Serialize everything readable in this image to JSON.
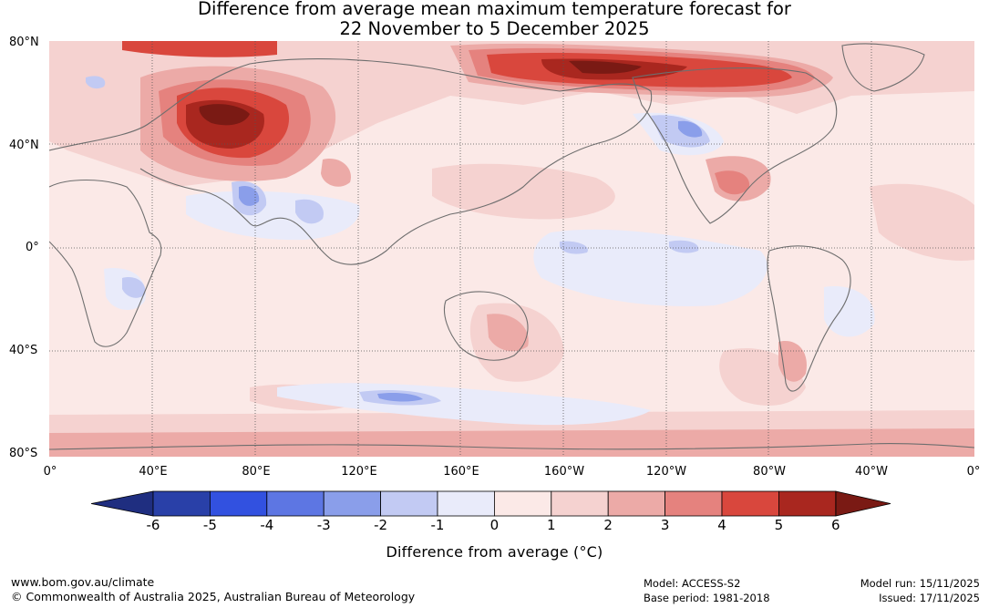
{
  "title": {
    "line1": "Difference from average mean maximum temperature forecast for",
    "line2": "22 November to 5 December 2025"
  },
  "map": {
    "lat_labels": [
      "80°N",
      "40°N",
      "0°",
      "40°S",
      "80°S"
    ],
    "lon_labels": [
      "0°",
      "40°E",
      "80°E",
      "120°E",
      "160°E",
      "160°W",
      "120°W",
      "80°W",
      "40°W",
      "0°"
    ]
  },
  "colorbar": {
    "ticks": [
      "-6",
      "-5",
      "-4",
      "-3",
      "-2",
      "-1",
      "0",
      "1",
      "2",
      "3",
      "4",
      "5",
      "6"
    ],
    "colors": [
      "#2940a8",
      "#3251e0",
      "#5d76e3",
      "#8a9eea",
      "#c2caf3",
      "#e9ebfa",
      "#fbe9e7",
      "#f5d2d0",
      "#ecaaa7",
      "#e5827e",
      "#d9473d",
      "#a9271f"
    ],
    "low_extend": "#1f2e80",
    "high_extend": "#7a1a14",
    "label": "Difference from average (°C)"
  },
  "footer": {
    "website": "www.bom.gov.au/climate",
    "copyright": "© Commonwealth of Australia 2025, Australian Bureau of Meteorology",
    "model": "Model: ACCESS-S2",
    "base_period": "Base period: 1981-2018",
    "model_run": "Model run: 15/11/2025",
    "issued": "Issued: 17/11/2025"
  }
}
